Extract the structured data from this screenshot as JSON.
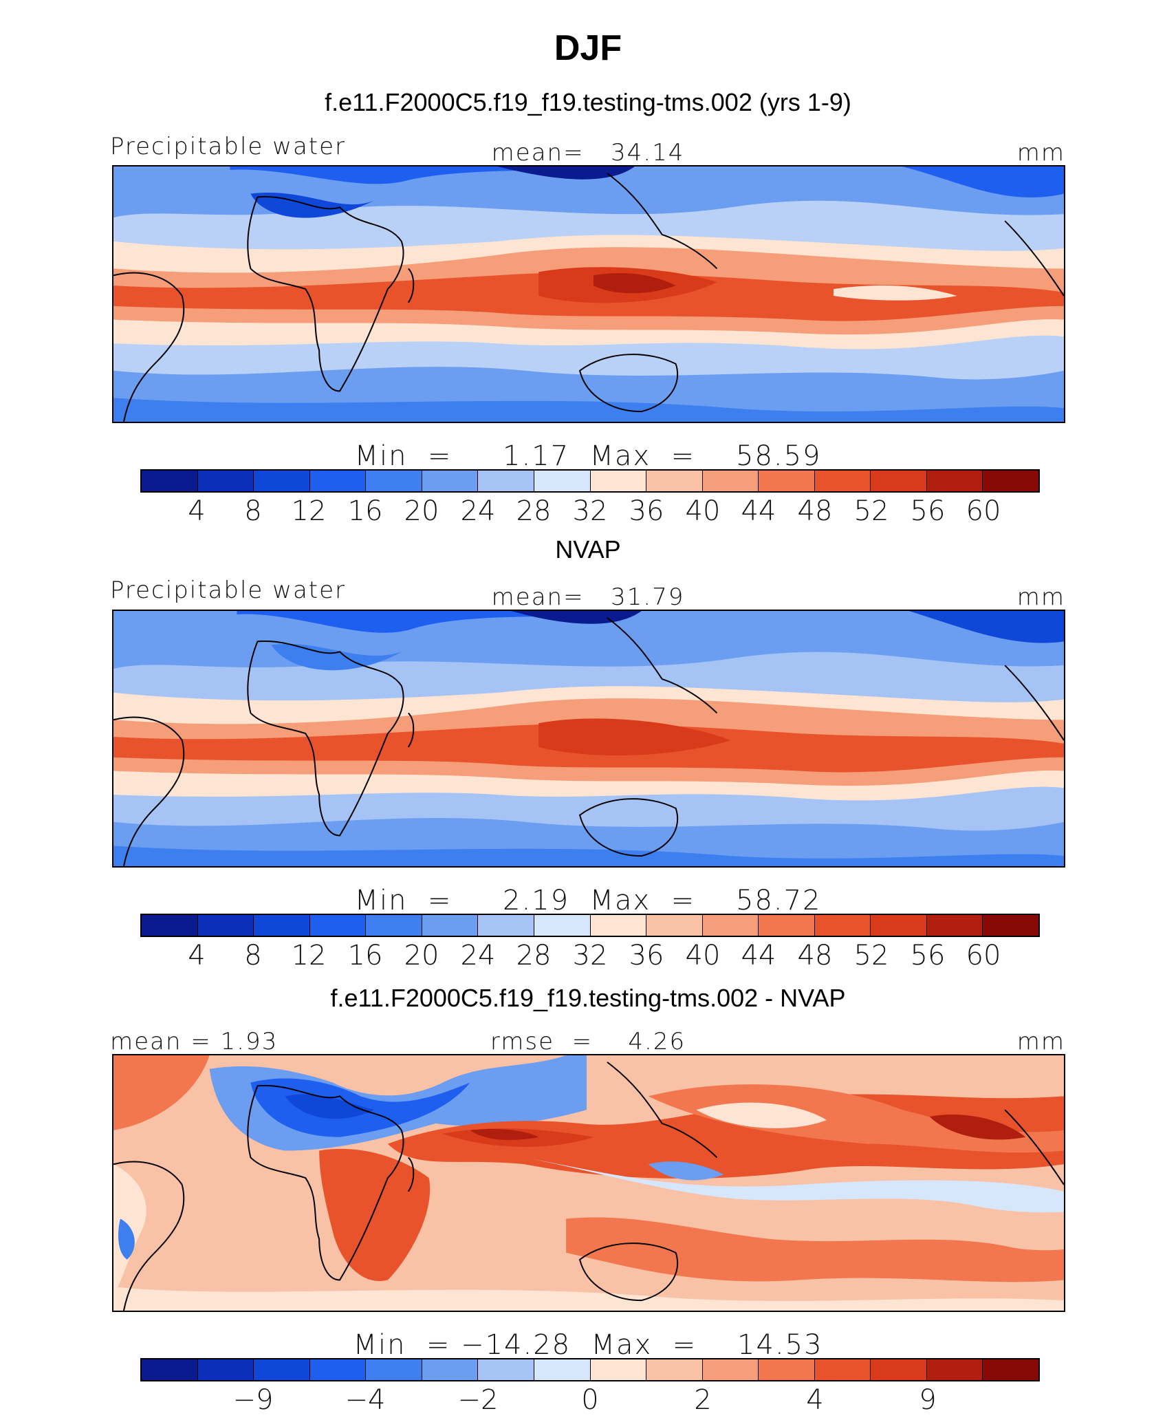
{
  "page": {
    "title": "DJF"
  },
  "colors": {
    "palette": [
      "#0a1b8f",
      "#0b2fb8",
      "#0f47d9",
      "#1f5ff0",
      "#3d7fee",
      "#6b9df0",
      "#a5c3f5",
      "#d6e6fb",
      "#fde4d3",
      "#f9c2a7",
      "#f59e79",
      "#f2774f",
      "#e9532c",
      "#d83a1a",
      "#b01e0e",
      "#870a06"
    ],
    "land_outline": "#000000",
    "panel_border": "#000000"
  },
  "panels": [
    {
      "id": "model",
      "subtitle": "f.e11.F2000C5.f19_f19.testing-tms.002 (yrs 1-9)",
      "left_label": "Precipitable water",
      "center_label": "mean=   34.14",
      "units": "mm",
      "minmax_label": "Min  =     1.17  Max  =    58.59",
      "colorbar_ticks": [
        "4",
        "8",
        "12",
        "16",
        "20",
        "24",
        "28",
        "32",
        "36",
        "40",
        "44",
        "48",
        "52",
        "56",
        "60"
      ]
    },
    {
      "id": "obs",
      "subtitle": "NVAP",
      "left_label": "Precipitable water",
      "center_label": "mean=   31.79",
      "units": "mm",
      "minmax_label": "Min  =     2.19  Max  =    58.72",
      "colorbar_ticks": [
        "4",
        "8",
        "12",
        "16",
        "20",
        "24",
        "28",
        "32",
        "36",
        "40",
        "44",
        "48",
        "52",
        "56",
        "60"
      ]
    },
    {
      "id": "diff",
      "subtitle": "f.e11.F2000C5.f19_f19.testing-tms.002 - NVAP",
      "left_label": "mean  =    1.93",
      "center_label": "rmse  =    4.26",
      "units": "mm",
      "minmax_label": "Min  = −14.28  Max  =    14.53",
      "colorbar_ticks": [
        "−9",
        "−4",
        "−2",
        "0",
        "2",
        "4",
        "9"
      ]
    }
  ]
}
